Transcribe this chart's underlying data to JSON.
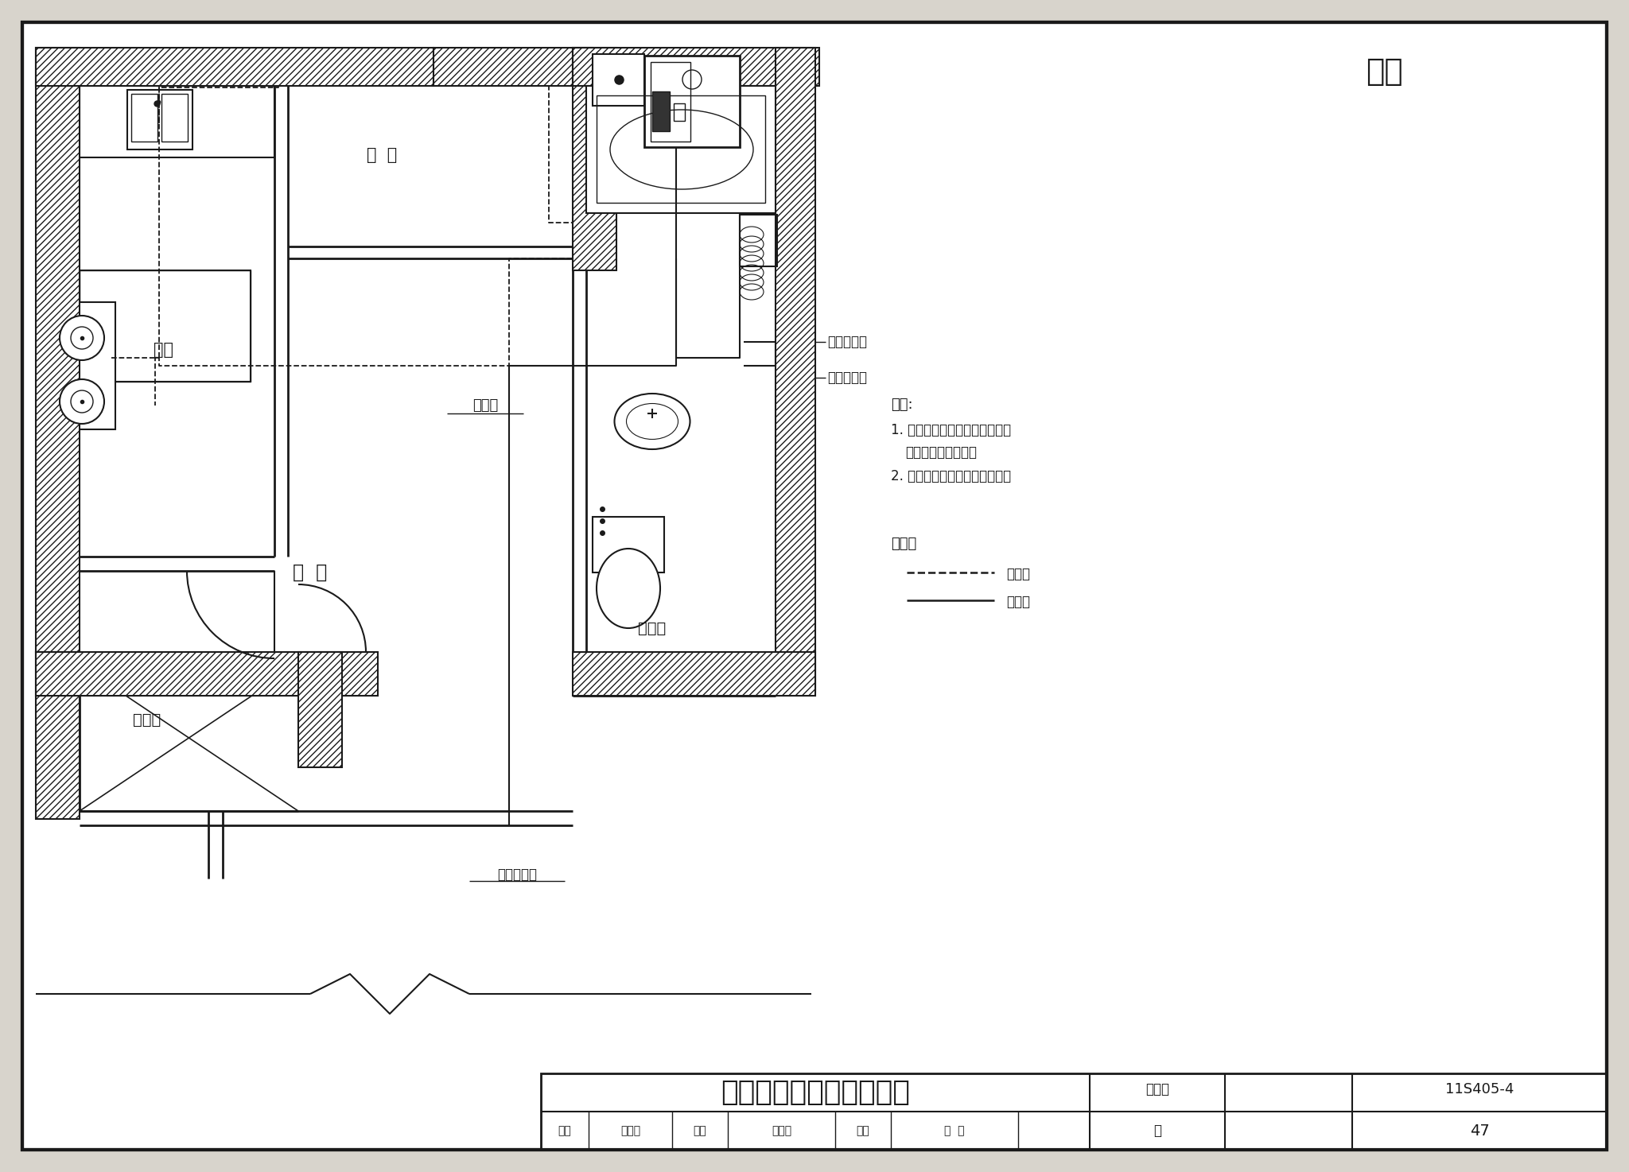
{
  "title_appendix": "附录",
  "main_title": "一厨一卫工程实例（一）",
  "label_atlas": "图集号",
  "atlas_num": "11S405-4",
  "label_page": "页",
  "page_num": "47",
  "label_review": "审核",
  "reviewer": "应明康",
  "label_check": "校对",
  "checker": "栾要俊",
  "label_design": "设计",
  "designer": "赵  昱",
  "room_kitchen": "厨房",
  "room_balcony": "阳  台",
  "room_dining": "餐  厅",
  "room_storage": "储藏室",
  "room_toilet": "卫生间",
  "equip_heater": "热水器",
  "equip_cold_inlet": "冷水进水管",
  "equip_hot_dist": "热水分水器",
  "equip_cold_dist": "冷水分水器",
  "note_title": "说明:",
  "note_1": "1. 本实例分水器设于吊顶内，热",
  "note_1b": "    水器设于卫生间内。",
  "note_2": "2. 冷水进水管接自分户水表后。",
  "legend_title": "图例：",
  "legend_hot": "热水管",
  "legend_cold": "冷水管",
  "bg_color": "#ffffff",
  "line_color": "#1a1a1a"
}
